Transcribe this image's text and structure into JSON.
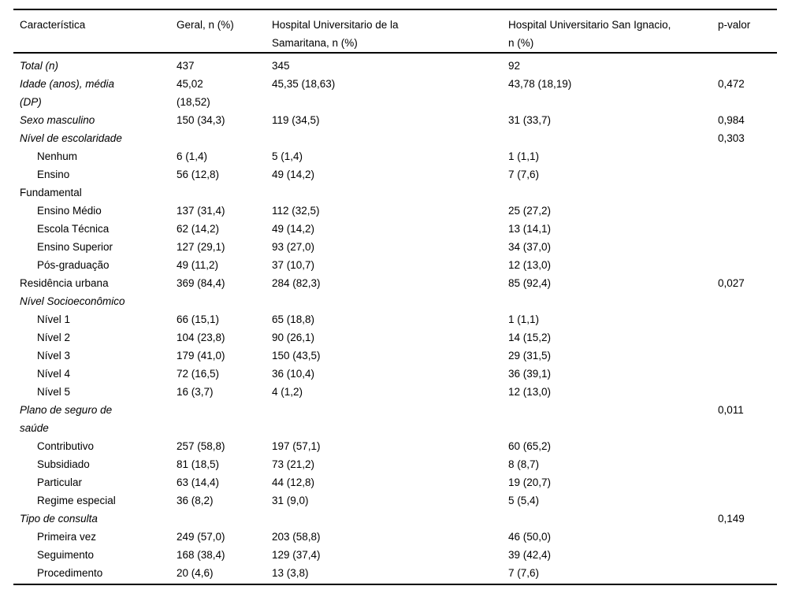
{
  "table": {
    "columns": [
      {
        "label": "Característica"
      },
      {
        "label": "Geral, n (%)"
      },
      {
        "label": "Hospital Universitario de la\nSamaritana, n (%)"
      },
      {
        "label": "Hospital Universitario San Ignacio,\nn (%)"
      },
      {
        "label": "p-valor"
      }
    ],
    "rows": [
      {
        "style": "section",
        "label": "Total (n)",
        "geral": "437",
        "samaritana": "345",
        "san_ignacio": "92",
        "p_valor": ""
      },
      {
        "style": "section",
        "label": "Idade (anos), média\n(DP)",
        "geral": "45,02\n(18,52)",
        "samaritana": "45,35 (18,63)",
        "san_ignacio": "43,78 (18,19)",
        "p_valor": "0,472"
      },
      {
        "style": "section",
        "label": "Sexo masculino",
        "geral": "150 (34,3)",
        "samaritana": "119 (34,5)",
        "san_ignacio": "31 (33,7)",
        "p_valor": "0,984"
      },
      {
        "style": "section",
        "label": "Nível de escolaridade",
        "geral": "",
        "samaritana": "",
        "san_ignacio": "",
        "p_valor": "0,303"
      },
      {
        "style": "sub",
        "label": "Nenhum",
        "geral": "6 (1,4)",
        "samaritana": "5 (1,4)",
        "san_ignacio": "1 (1,1)",
        "p_valor": ""
      },
      {
        "style": "sub",
        "label": "Ensino\nFundamental",
        "geral": "56 (12,8)",
        "samaritana": "49 (14,2)",
        "san_ignacio": "7 (7,6)",
        "p_valor": ""
      },
      {
        "style": "sub",
        "label": "Ensino Médio",
        "geral": "137 (31,4)",
        "samaritana": "112 (32,5)",
        "san_ignacio": "25 (27,2)",
        "p_valor": ""
      },
      {
        "style": "sub",
        "label": "Escola Técnica",
        "geral": "62 (14,2)",
        "samaritana": "49 (14,2)",
        "san_ignacio": "13 (14,1)",
        "p_valor": ""
      },
      {
        "style": "sub",
        "label": "Ensino Superior",
        "geral": "127 (29,1)",
        "samaritana": "93 (27,0)",
        "san_ignacio": "34 (37,0)",
        "p_valor": ""
      },
      {
        "style": "sub",
        "label": "Pós-graduação",
        "geral": "49 (11,2)",
        "samaritana": "37 (10,7)",
        "san_ignacio": "12 (13,0)",
        "p_valor": ""
      },
      {
        "style": "plain",
        "label": "Residência urbana",
        "geral": "369 (84,4)",
        "samaritana": "284 (82,3)",
        "san_ignacio": "85 (92,4)",
        "p_valor": "0,027"
      },
      {
        "style": "section",
        "label": "Nível Socioeconômico",
        "geral": "",
        "samaritana": "",
        "san_ignacio": "",
        "p_valor": ""
      },
      {
        "style": "sub",
        "label": "Nível 1",
        "geral": "66 (15,1)",
        "samaritana": "65 (18,8)",
        "san_ignacio": "1 (1,1)",
        "p_valor": ""
      },
      {
        "style": "sub",
        "label": "Nível 2",
        "geral": "104 (23,8)",
        "samaritana": "90 (26,1)",
        "san_ignacio": "14 (15,2)",
        "p_valor": ""
      },
      {
        "style": "sub",
        "label": "Nível 3",
        "geral": "179 (41,0)",
        "samaritana": "150 (43,5)",
        "san_ignacio": "29 (31,5)",
        "p_valor": ""
      },
      {
        "style": "sub",
        "label": "Nível 4",
        "geral": "72 (16,5)",
        "samaritana": "36 (10,4)",
        "san_ignacio": "36 (39,1)",
        "p_valor": ""
      },
      {
        "style": "sub",
        "label": "Nível 5",
        "geral": "16 (3,7)",
        "samaritana": "4 (1,2)",
        "san_ignacio": "12 (13,0)",
        "p_valor": ""
      },
      {
        "style": "section",
        "label": "Plano de seguro de\nsaúde",
        "geral": "",
        "samaritana": "",
        "san_ignacio": "",
        "p_valor": "0,011"
      },
      {
        "style": "sub",
        "label": "Contributivo",
        "geral": "257 (58,8)",
        "samaritana": "197 (57,1)",
        "san_ignacio": "60 (65,2)",
        "p_valor": ""
      },
      {
        "style": "sub",
        "label": "Subsidiado",
        "geral": "81 (18,5)",
        "samaritana": "73 (21,2)",
        "san_ignacio": "8 (8,7)",
        "p_valor": ""
      },
      {
        "style": "sub",
        "label": "Particular",
        "geral": "63 (14,4)",
        "samaritana": "44 (12,8)",
        "san_ignacio": "19 (20,7)",
        "p_valor": ""
      },
      {
        "style": "sub",
        "label": "Regime especial",
        "geral": "36 (8,2)",
        "samaritana": "31 (9,0)",
        "san_ignacio": "5 (5,4)",
        "p_valor": ""
      },
      {
        "style": "section",
        "label": "Tipo de consulta",
        "geral": "",
        "samaritana": "",
        "san_ignacio": "",
        "p_valor": "0,149"
      },
      {
        "style": "sub",
        "label": "Primeira vez",
        "geral": "249 (57,0)",
        "samaritana": "203 (58,8)",
        "san_ignacio": "46 (50,0)",
        "p_valor": ""
      },
      {
        "style": "sub",
        "label": "Seguimento",
        "geral": "168 (38,4)",
        "samaritana": "129 (37,4)",
        "san_ignacio": "39 (42,4)",
        "p_valor": ""
      },
      {
        "style": "sub",
        "label": "Procedimento",
        "geral": "20 (4,6)",
        "samaritana": "13 (3,8)",
        "san_ignacio": "7 (7,6)",
        "p_valor": ""
      }
    ]
  }
}
